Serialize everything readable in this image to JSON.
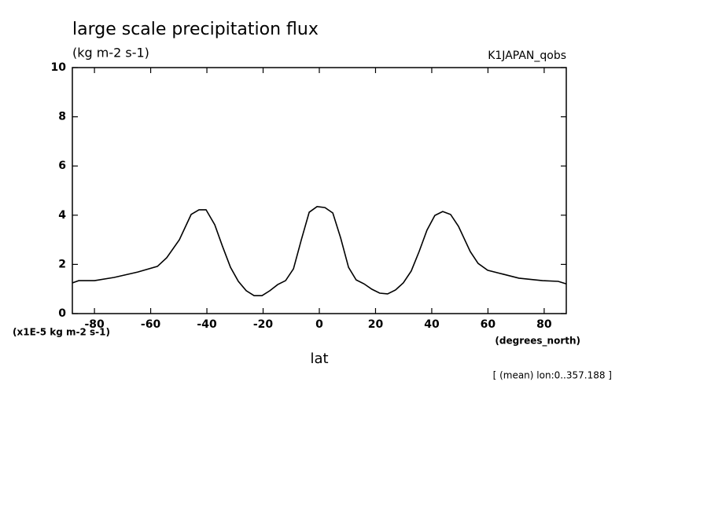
{
  "chart_data": {
    "type": "line",
    "title": "large scale precipitation flux",
    "subtitle": "(kg m-2 s-1)",
    "dataset": "K1JAPAN_qobs",
    "y_unit": "(x1E-5 kg m-2 s-1)",
    "x_unit": "(degrees_north)",
    "x_label": "lat",
    "note": "[ (mean) lon:0..357.188 ]",
    "color": "#000000",
    "xlim": [
      -87.8638,
      87.8638
    ],
    "ylim": [
      0,
      10
    ],
    "xticks": [
      -80,
      -60,
      -40,
      -20,
      0,
      20,
      40,
      60,
      80
    ],
    "yticks": [
      0,
      2,
      4,
      6,
      8,
      10
    ],
    "x": [
      -87.8,
      -85.6,
      -80,
      -73,
      -64.6,
      -57.6,
      -54.3,
      -49.8,
      -45.6,
      -42.8,
      -40.3,
      -37.2,
      -34.5,
      -31.6,
      -28.8,
      -26,
      -23.2,
      -20.4,
      -17.6,
      -14.8,
      -12,
      -9.2,
      -6.4,
      -3.6,
      -0.8,
      2,
      4.8,
      7.6,
      10.4,
      13.1,
      15.9,
      18.7,
      21.5,
      24.3,
      27.1,
      29.9,
      32.7,
      35.5,
      38.3,
      41.1,
      43.9,
      46.7,
      49.5,
      53.7,
      56.5,
      59.9,
      65.5,
      71,
      79.4,
      85,
      87.8
    ],
    "values": [
      1.25,
      1.34,
      1.34,
      1.47,
      1.69,
      1.92,
      2.27,
      3.0,
      4.03,
      4.22,
      4.22,
      3.61,
      2.75,
      1.88,
      1.31,
      0.93,
      0.73,
      0.73,
      0.93,
      1.18,
      1.34,
      1.82,
      3.0,
      4.12,
      4.35,
      4.31,
      4.09,
      3.07,
      1.88,
      1.37,
      1.21,
      0.99,
      0.83,
      0.8,
      0.96,
      1.25,
      1.73,
      2.52,
      3.39,
      3.99,
      4.15,
      4.03,
      3.55,
      2.52,
      2.04,
      1.76,
      1.6,
      1.44,
      1.34,
      1.31,
      1.21
    ]
  }
}
